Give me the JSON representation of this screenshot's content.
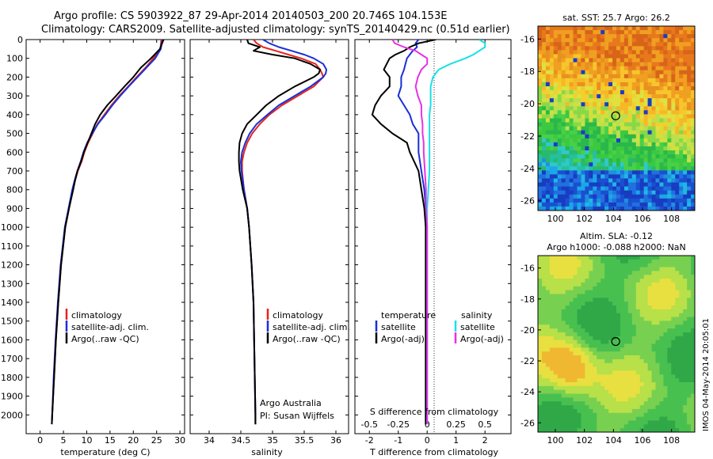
{
  "header": {
    "title_line1": "Argo profile: CS 5903922_87 29-Apr-2014 20140503_200 20.746S 104.153E",
    "title_line2": "Climatology: CARS2009. Satellite-adjusted climatology: synTS_20140429.nc (0.51d earlier)"
  },
  "colors": {
    "climatology": "#e8231c",
    "satellite": "#1a2fd6",
    "argo": "#000000",
    "sal_satellite": "#19e0e6",
    "sal_argo": "#e632e6"
  },
  "chart_data": [
    {
      "type": "line",
      "xlabel": "temperature (deg C)",
      "ylabel": "",
      "xlim": [
        -3,
        31
      ],
      "ylim": [
        2100,
        0
      ],
      "xticks": [
        0,
        5,
        10,
        15,
        20,
        25,
        30
      ],
      "yticks": [
        0,
        100,
        200,
        300,
        400,
        500,
        600,
        700,
        800,
        900,
        1000,
        1100,
        1200,
        1300,
        1400,
        1500,
        1600,
        1700,
        1800,
        1900,
        2000
      ],
      "depth": [
        0,
        50,
        100,
        150,
        200,
        250,
        300,
        350,
        400,
        450,
        500,
        550,
        600,
        650,
        700,
        750,
        800,
        900,
        1000,
        1200,
        1400,
        1600,
        1800,
        2000,
        2050
      ],
      "legend": [
        "climatology",
        "satellite-adj. clim.",
        "Argo(..raw -QC)"
      ],
      "series": [
        {
          "name": "climatology",
          "values": [
            26,
            25.8,
            24.3,
            22.6,
            20.7,
            18.9,
            17.0,
            15.3,
            13.8,
            12.3,
            11.3,
            10.3,
            9.5,
            8.9,
            8.1,
            7.5,
            7.0,
            6.2,
            5.4,
            4.5,
            3.9,
            3.4,
            3.0,
            2.6,
            2.5
          ]
        },
        {
          "name": "satellite-adj. clim.",
          "values": [
            26.2,
            25.9,
            24.7,
            22.8,
            20.9,
            19.0,
            17.2,
            15.5,
            14.0,
            12.4,
            11.2,
            10.1,
            9.3,
            8.7,
            8.0,
            7.4,
            6.9,
            6.1,
            5.3,
            4.4,
            3.8,
            3.3,
            2.9,
            2.6,
            2.5
          ]
        },
        {
          "name": "Argo(..raw -QC)",
          "values": [
            26.5,
            25.7,
            23.8,
            21.6,
            20.0,
            18.1,
            16.3,
            14.4,
            12.9,
            11.8,
            11.0,
            10.2,
            9.4,
            8.8,
            8.0,
            7.5,
            7.1,
            6.2,
            5.4,
            4.5,
            3.9,
            3.4,
            3.0,
            2.6,
            2.5
          ]
        }
      ]
    },
    {
      "type": "line",
      "xlabel": "salinity",
      "ylabel": "",
      "xlim": [
        33.7,
        36.2
      ],
      "ylim": [
        2100,
        0
      ],
      "xticks": [
        34,
        34.5,
        35,
        35.5,
        36
      ],
      "depth": [
        0,
        20,
        40,
        60,
        80,
        100,
        130,
        160,
        180,
        200,
        250,
        300,
        350,
        400,
        450,
        500,
        550,
        600,
        650,
        700,
        800,
        900,
        1000,
        1200,
        1400,
        1600,
        1800,
        2000,
        2050
      ],
      "legend": [
        "climatology",
        "satellite-adj. clim.",
        "Argo(..raw -QC)"
      ],
      "series": [
        {
          "name": "climatology",
          "values": [
            34.7,
            34.75,
            34.85,
            35.05,
            35.25,
            35.45,
            35.68,
            35.75,
            35.78,
            35.8,
            35.65,
            35.4,
            35.15,
            34.95,
            34.8,
            34.68,
            34.6,
            34.55,
            34.52,
            34.52,
            34.55,
            34.6,
            34.63,
            34.67,
            34.7,
            34.71,
            34.72,
            34.73,
            34.73
          ]
        },
        {
          "name": "satellite-adj. clim.",
          "values": [
            34.85,
            34.95,
            35.1,
            35.3,
            35.5,
            35.65,
            35.8,
            35.85,
            35.84,
            35.8,
            35.6,
            35.35,
            35.1,
            34.92,
            34.75,
            34.64,
            34.57,
            34.52,
            34.5,
            34.51,
            34.55,
            34.6,
            34.63,
            34.67,
            34.7,
            34.71,
            34.72,
            34.73,
            34.73
          ]
        },
        {
          "name": "Argo(..raw -QC)",
          "values": [
            34.6,
            34.62,
            34.8,
            34.7,
            35.0,
            35.35,
            35.6,
            35.75,
            35.73,
            35.65,
            35.35,
            35.1,
            34.9,
            34.75,
            34.6,
            34.52,
            34.48,
            34.47,
            34.47,
            34.48,
            34.53,
            34.6,
            34.63,
            34.67,
            34.7,
            34.71,
            34.72,
            34.73,
            34.73
          ]
        }
      ],
      "annotations": [
        "Argo Australia",
        "PI: Susan Wijffels"
      ]
    },
    {
      "type": "line",
      "xlabel": "T difference from climatology",
      "x2label": "S difference from climatology",
      "xlim": [
        -2.5,
        2.9
      ],
      "ylim": [
        2100,
        0
      ],
      "xticks": [
        -2,
        -1,
        0,
        1,
        2
      ],
      "x2ticks": [
        "-0.5",
        "-0.25",
        "0",
        "0.25",
        "0.5"
      ],
      "x2tick_values_T": [
        -2,
        -1,
        0,
        1,
        2
      ],
      "legend_titles": [
        "temperature",
        "salinity"
      ],
      "legend": [
        "satellite",
        "Argo(-adj)",
        "satellite",
        "Argo(-adj)"
      ],
      "depth": [
        0,
        20,
        40,
        60,
        80,
        100,
        130,
        160,
        200,
        250,
        300,
        350,
        400,
        450,
        500,
        550,
        600,
        700,
        800,
        900,
        1000,
        1200,
        1500,
        1800,
        2000,
        2050
      ],
      "series": [
        {
          "name": "satellite",
          "quantity": "temperature",
          "values": [
            -0.3,
            -0.4,
            -0.35,
            -0.5,
            -0.6,
            -0.7,
            -0.75,
            -0.8,
            -0.9,
            -0.9,
            -1.0,
            -0.8,
            -0.6,
            -0.5,
            -0.3,
            -0.3,
            -0.3,
            -0.2,
            -0.1,
            -0.05,
            -0.05,
            -0.05,
            -0.05,
            -0.05,
            -0.05,
            -0.05
          ]
        },
        {
          "name": "Argo(-adj)",
          "quantity": "temperature",
          "values": [
            0.3,
            -0.3,
            -0.6,
            -0.8,
            -1.1,
            -1.3,
            -1.4,
            -1.5,
            -1.3,
            -1.3,
            -1.6,
            -1.8,
            -1.9,
            -1.6,
            -1.2,
            -0.7,
            -0.6,
            -0.3,
            -0.2,
            -0.1,
            -0.05,
            -0.05,
            -0.05,
            -0.05,
            -0.05,
            -0.05
          ]
        },
        {
          "name": "satellite",
          "quantity": "salinity",
          "values": [
            0.45,
            0.5,
            0.5,
            0.45,
            0.4,
            0.33,
            0.2,
            0.1,
            0.05,
            0.03,
            0.03,
            0.03,
            0.02,
            0.02,
            0.02,
            0.02,
            0.02,
            0.02,
            0.01,
            0.0,
            0.0,
            0.0,
            0.0,
            0.0,
            0.0,
            0.0
          ]
        },
        {
          "name": "Argo(-adj)",
          "quantity": "salinity",
          "values": [
            -0.3,
            -0.28,
            -0.2,
            -0.1,
            -0.05,
            0.0,
            0.0,
            -0.05,
            -0.08,
            -0.1,
            -0.08,
            -0.05,
            -0.05,
            -0.04,
            -0.04,
            -0.03,
            -0.03,
            -0.02,
            -0.01,
            -0.01,
            0.0,
            0.0,
            0.0,
            0.0,
            0.0,
            0.0
          ]
        }
      ]
    },
    {
      "type": "heatmap",
      "title": "sat. SST: 25.7  Argo: 26.2",
      "xlim": [
        98.8,
        109.6
      ],
      "ylim": [
        -26.6,
        -15.2
      ],
      "xticks": [
        100,
        102,
        104,
        106,
        108
      ],
      "yticks": [
        -16,
        -18,
        -20,
        -22,
        -24,
        -26
      ],
      "marker": {
        "lon": 104.153,
        "lat": -20.746
      }
    },
    {
      "type": "heatmap",
      "title_line1": "Altim. SLA: -0.12",
      "title_line2": "Argo h1000: -0.088  h2000: NaN",
      "xlim": [
        98.8,
        109.6
      ],
      "ylim": [
        -26.6,
        -15.2
      ],
      "xticks": [
        100,
        102,
        104,
        106,
        108
      ],
      "yticks": [
        -16,
        -18,
        -20,
        -22,
        -24,
        -26
      ],
      "marker": {
        "lon": 104.153,
        "lat": -20.746
      }
    }
  ],
  "footer": {
    "stamp": "IMOS 04-May-2014 20:05:01"
  }
}
